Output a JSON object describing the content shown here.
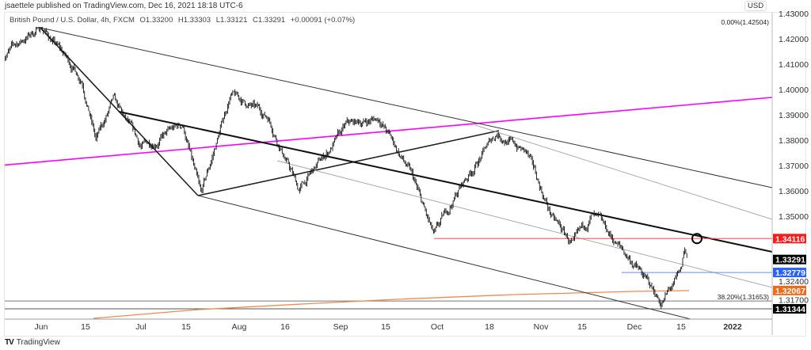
{
  "publisher_line": "jsaettele published on TradingView.com, Dec 16, 2021 18:18 UTC-6",
  "legend": {
    "symbol": "British Pound / U.S. Dollar, 4h, FXCM",
    "open": "O1.33200",
    "high": "H1.33303",
    "low": "L1.33121",
    "close": "C1.33291",
    "change": "+0.00091 (+0.07%)"
  },
  "currency_badge": "USD",
  "footer": {
    "logo_text": "TradingView"
  },
  "chart_data": {
    "type": "line",
    "title": "British Pound / U.S. Dollar, 4h, FXCM",
    "xlabel": "",
    "ylabel": "USD",
    "ylim": [
      1.312,
      1.43
    ],
    "x_ticks": [
      {
        "label": "Jun",
        "date": "2021-06-01"
      },
      {
        "label": "15",
        "date": "2021-06-15"
      },
      {
        "label": "Jul",
        "date": "2021-07-01"
      },
      {
        "label": "15",
        "date": "2021-07-15"
      },
      {
        "label": "Aug",
        "date": "2021-08-02"
      },
      {
        "label": "16",
        "date": "2021-08-16"
      },
      {
        "label": "Sep",
        "date": "2021-09-01"
      },
      {
        "label": "15",
        "date": "2021-09-15"
      },
      {
        "label": "Oct",
        "date": "2021-10-01"
      },
      {
        "label": "18",
        "date": "2021-10-18"
      },
      {
        "label": "Nov",
        "date": "2021-11-01"
      },
      {
        "label": "15",
        "date": "2021-11-15"
      },
      {
        "label": "Dec",
        "date": "2021-12-01"
      },
      {
        "label": "15",
        "date": "2021-12-15"
      },
      {
        "label": "2022",
        "date": "2022-01-01"
      }
    ],
    "y_ticks": [
      "1.43000",
      "1.42000",
      "1.41000",
      "1.40000",
      "1.39000",
      "1.38000",
      "1.37000",
      "1.36000",
      "1.35000",
      "1.32400",
      "1.31700"
    ],
    "price_path": [
      {
        "date": "2021-05-20",
        "price": 1.4136
      },
      {
        "date": "2021-06-01",
        "price": 1.425
      },
      {
        "date": "2021-06-14",
        "price": 1.404
      },
      {
        "date": "2021-06-18",
        "price": 1.38
      },
      {
        "date": "2021-06-23",
        "price": 1.395
      },
      {
        "date": "2021-07-01",
        "price": 1.377
      },
      {
        "date": "2021-07-14",
        "price": 1.386
      },
      {
        "date": "2021-07-20",
        "price": 1.3572
      },
      {
        "date": "2021-07-30",
        "price": 1.398
      },
      {
        "date": "2021-08-11",
        "price": 1.389
      },
      {
        "date": "2021-08-20",
        "price": 1.3602
      },
      {
        "date": "2021-09-03",
        "price": 1.3855
      },
      {
        "date": "2021-09-13",
        "price": 1.3888
      },
      {
        "date": "2021-09-23",
        "price": 1.366
      },
      {
        "date": "2021-09-30",
        "price": 1.3412
      },
      {
        "date": "2021-10-08",
        "price": 1.3605
      },
      {
        "date": "2021-10-20",
        "price": 1.383
      },
      {
        "date": "2021-10-28",
        "price": 1.375
      },
      {
        "date": "2021-11-05",
        "price": 1.349
      },
      {
        "date": "2021-11-12",
        "price": 1.338
      },
      {
        "date": "2021-11-18",
        "price": 1.35
      },
      {
        "date": "2021-12-01",
        "price": 1.331
      },
      {
        "date": "2021-12-09",
        "price": 1.316
      },
      {
        "date": "2021-12-15",
        "price": 1.327
      },
      {
        "date": "2021-12-16",
        "price": 1.3362
      },
      {
        "date": "2021-12-17",
        "price": 1.33291
      }
    ],
    "price_levels": [
      {
        "name": "last-price",
        "value": 1.33291,
        "label": "1.33291",
        "color": "#000000"
      },
      {
        "name": "resistance",
        "value": 1.34116,
        "label": "1.34116",
        "color": "#ff1a1a"
      },
      {
        "name": "support-blue",
        "value": 1.32779,
        "label": "1.32779",
        "color": "#2962ff"
      },
      {
        "name": "moving-average",
        "value": 1.32067,
        "label": "1.32067",
        "color": "#f06a1a"
      },
      {
        "name": "low-level",
        "value": 1.31344,
        "label": "1.31344",
        "color": "#000000"
      }
    ],
    "fib_levels": [
      {
        "label": "0.00%(1.42504)",
        "value": 1.42504
      },
      {
        "label": "38.20%(1.31653)",
        "value": 1.31653
      }
    ],
    "colors": {
      "magenta_trendline": "#ff00ff",
      "moving_average": "#f08a50",
      "bars": "#111111",
      "circle": "#000000"
    }
  }
}
